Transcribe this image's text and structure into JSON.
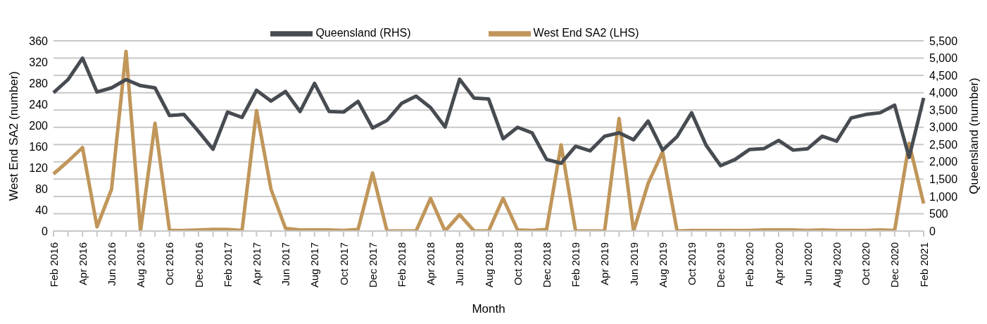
{
  "chart_data": {
    "type": "line",
    "categories": [
      "Feb 2016",
      null,
      "Apr 2016",
      null,
      "Jun 2016",
      null,
      "Aug 2016",
      null,
      "Oct 2016",
      null,
      "Dec 2016",
      null,
      "Feb 2017",
      null,
      "Apr 2017",
      null,
      "Jun 2017",
      null,
      "Aug 2017",
      null,
      "Oct 2017",
      null,
      "Dec 2017",
      null,
      "Feb 2018",
      null,
      "Apr 2018",
      null,
      "Jun 2018",
      null,
      "Aug 2018",
      null,
      "Oct 2018",
      null,
      "Dec 2018",
      null,
      "Feb 2019",
      null,
      "Apr 2019",
      null,
      "Jun 2019",
      null,
      "Aug 2019",
      null,
      "Oct 2019",
      null,
      "Dec 2019",
      null,
      "Feb 2020",
      null,
      "Apr 2020",
      null,
      "Jun 2020",
      null,
      "Aug 2020",
      null,
      "Oct 2020",
      null,
      "Dec 2020",
      null,
      "Feb 2021"
    ],
    "series": [
      {
        "name": "West End SA2 (LHS)",
        "color": "#c0965a",
        "values": [
          108,
          132,
          158,
          8,
          79,
          340,
          0,
          204,
          1,
          1,
          2,
          3,
          3,
          1,
          228,
          79,
          5,
          2,
          2,
          2,
          1,
          3,
          110,
          0,
          0,
          0,
          62,
          0,
          31,
          0,
          0,
          62,
          2,
          1,
          3,
          163,
          0,
          0,
          0,
          213,
          0,
          90,
          150,
          0,
          1,
          1,
          1,
          1,
          1,
          2,
          2,
          2,
          1,
          2,
          1,
          1,
          1,
          2,
          1,
          166,
          52
        ]
      },
      {
        "name": "Queensland (RHS)",
        "color": "#474c52",
        "axis": "y2",
        "values": [
          4000,
          4380,
          5000,
          4020,
          4140,
          4380,
          4205,
          4140,
          3340,
          3370,
          2880,
          2365,
          3440,
          3285,
          4070,
          3760,
          4035,
          3456,
          4270,
          3460,
          3440,
          3750,
          2980,
          3200,
          3690,
          3900,
          3570,
          3010,
          4390,
          3845,
          3820,
          2670,
          3000,
          2840,
          2070,
          1960,
          2450,
          2320,
          2740,
          2840,
          2640,
          3180,
          2340,
          2730,
          3420,
          2480,
          1890,
          2070,
          2360,
          2385,
          2620,
          2340,
          2380,
          2740,
          2600,
          3270,
          3370,
          3420,
          3640,
          2130,
          3850
        ]
      }
    ],
    "xlabel": "Month",
    "ylabel": "West End SA2 (number)",
    "y2label": "Queensland (number)",
    "ylim": [
      0,
      360
    ],
    "yticks": [
      0,
      40,
      80,
      120,
      160,
      200,
      240,
      280,
      320,
      360
    ],
    "y2lim": [
      0,
      5500
    ],
    "y2ticks": [
      0,
      {
        "value": 500,
        "label": "500"
      },
      {
        "value": 1000,
        "label": "1,000"
      },
      {
        "value": 1500,
        "label": "1,500"
      },
      {
        "value": 2000,
        "label": "2,000"
      },
      {
        "value": 2500,
        "label": "2,500"
      },
      {
        "value": 3000,
        "label": "3,000"
      },
      {
        "value": 3500,
        "label": "3,500"
      },
      {
        "value": 4000,
        "label": "4,000"
      },
      {
        "value": 4500,
        "label": "4,500"
      },
      {
        "value": 5000,
        "label": "5,000"
      },
      {
        "value": 5500,
        "label": "5,500"
      }
    ],
    "grid": "y",
    "legend": "top",
    "marker": "none",
    "line_style": "solid"
  }
}
